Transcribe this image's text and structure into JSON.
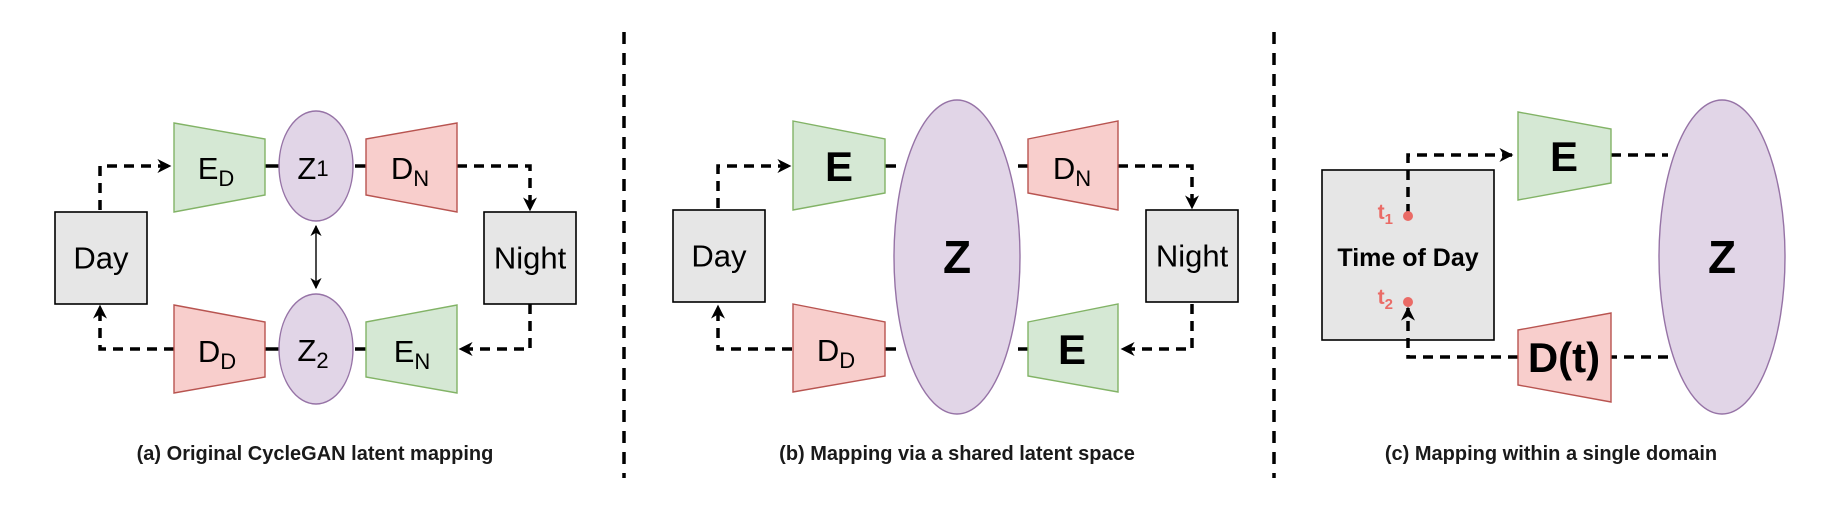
{
  "panels": [
    {
      "caption": "(a) Original CycleGAN latent mapping",
      "source_box": "Day",
      "target_box": "Night",
      "encoder_top": {
        "base": "E",
        "sub": "D"
      },
      "latent_top": {
        "base": "Z",
        "sub": "1"
      },
      "decoder_top": {
        "base": "D",
        "sub": "N"
      },
      "decoder_bottom": {
        "base": "D",
        "sub": "D"
      },
      "latent_bottom": {
        "base": "Z",
        "sub": "2"
      },
      "encoder_bottom": {
        "base": "E",
        "sub": "N"
      }
    },
    {
      "caption": "(b) Mapping via a shared latent space",
      "source_box": "Day",
      "target_box": "Night",
      "encoder_top": "E",
      "latent": "Z",
      "decoder_top": {
        "base": "D",
        "sub": "N"
      },
      "decoder_bottom": {
        "base": "D",
        "sub": "D"
      },
      "encoder_bottom": "E"
    },
    {
      "caption": "(c) Mapping within a single domain",
      "box": "Time of Day",
      "time_1": {
        "base": "t",
        "sub": "1"
      },
      "time_2": {
        "base": "t",
        "sub": "2"
      },
      "encoder": "E",
      "latent": "Z",
      "decoder": "D(t)"
    }
  ],
  "colors": {
    "encoder_fill": "#d5e8d4",
    "decoder_fill": "#f8cecc",
    "latent_fill": "#e1d5e7",
    "box_fill": "#e6e6e6",
    "time_marker": "#ea6b66"
  }
}
